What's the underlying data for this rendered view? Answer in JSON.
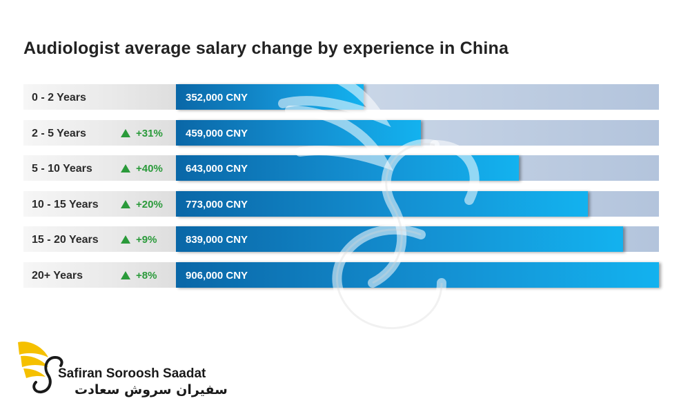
{
  "chart_data": {
    "type": "bar",
    "orientation": "horizontal",
    "title": "Audiologist average salary change by experience in China",
    "categories": [
      "0 - 2 Years",
      "2 - 5 Years",
      "5 - 10 Years",
      "10 - 15 Years",
      "15 - 20 Years",
      "20+ Years"
    ],
    "values": [
      352000,
      459000,
      643000,
      773000,
      839000,
      906000
    ],
    "value_labels": [
      "352,000 CNY",
      "459,000 CNY",
      "643,000 CNY",
      "773,000 CNY",
      "839,000 CNY",
      "906,000 CNY"
    ],
    "changes": [
      "",
      "+31%",
      "+40%",
      "+20%",
      "+9%",
      "+8%"
    ],
    "xlim": [
      0,
      906000
    ],
    "grid": false
  },
  "colors": {
    "bar": "#1490d2",
    "track": "#b3c4dc",
    "increase": "#2a9a3a"
  },
  "logo": {
    "name_en": "Safiran Soroosh Saadat",
    "name_fa": "سفیران سروش سعادت",
    "colors": [
      "#f5c000",
      "#1a1a1a"
    ]
  }
}
